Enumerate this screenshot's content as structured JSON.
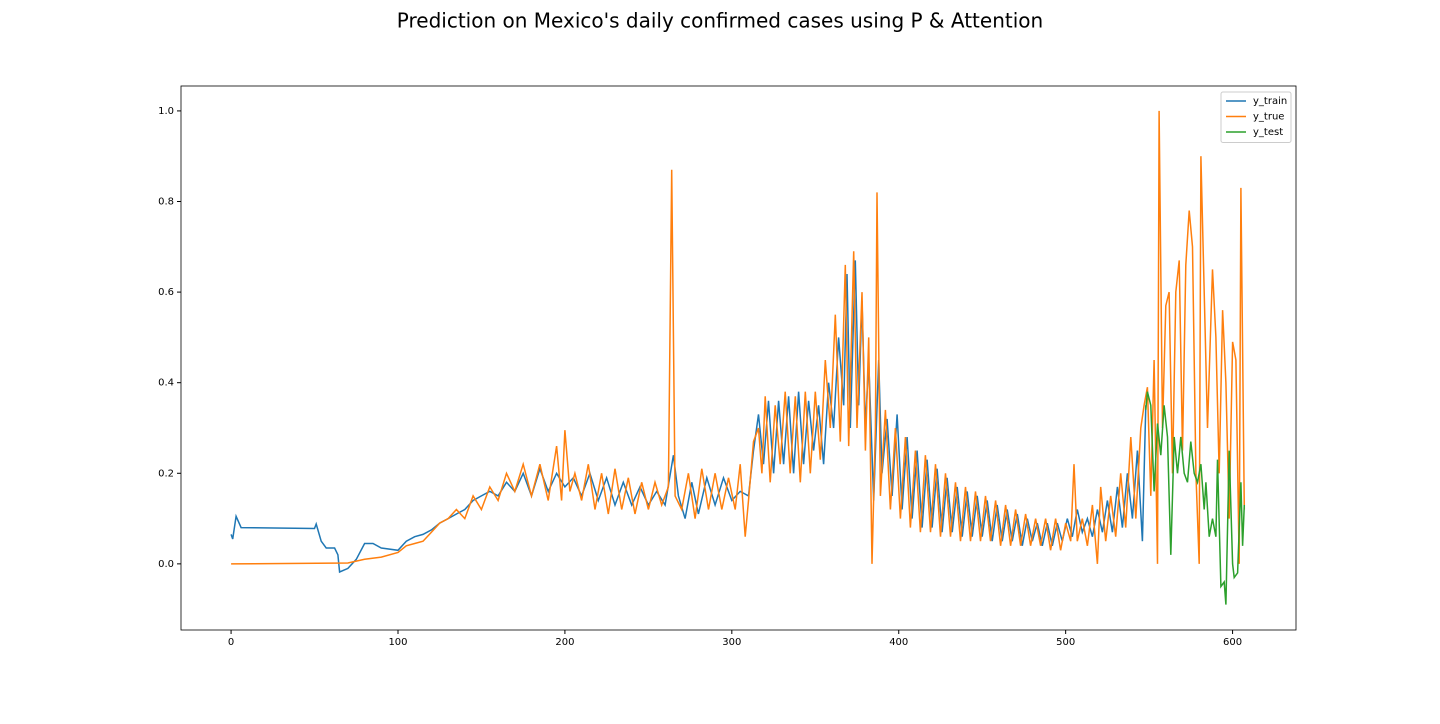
{
  "chart_data": {
    "type": "line",
    "title": "Prediction on Mexico's daily confirmed cases using P & Attention",
    "xlim": [
      -30,
      638
    ],
    "xticks": [
      0,
      100,
      200,
      300,
      400,
      500,
      600
    ],
    "ylim": [
      -0.146,
      1.055
    ],
    "yticks": [
      {
        "value": 0,
        "label": "0.0"
      },
      0.2,
      0.4,
      0.6,
      0.8,
      {
        "value": 1,
        "label": "1.0"
      }
    ],
    "legend": "upper right",
    "series": [
      {
        "name": "y_train",
        "color": "#1f77b4",
        "x": [
          0,
          1,
          3,
          6,
          50,
          51,
          54,
          57,
          62,
          64,
          65,
          70,
          75,
          80,
          85,
          90,
          100,
          105,
          110,
          115,
          120,
          125,
          130,
          135,
          140,
          145,
          150,
          155,
          160,
          165,
          170,
          175,
          180,
          185,
          190,
          195,
          200,
          205,
          210,
          215,
          220,
          225,
          230,
          235,
          240,
          245,
          250,
          255,
          260,
          265,
          268,
          272,
          276,
          280,
          285,
          290,
          295,
          300,
          305,
          310,
          313,
          316,
          319,
          322,
          325,
          328,
          331,
          334,
          337,
          340,
          343,
          346,
          349,
          352,
          355,
          358,
          361,
          364,
          367,
          369,
          371,
          374,
          376,
          378,
          380,
          382,
          385,
          388,
          390,
          393,
          396,
          399,
          402,
          405,
          408,
          411,
          414,
          417,
          420,
          423,
          426,
          429,
          432,
          435,
          438,
          441,
          444,
          447,
          450,
          453,
          456,
          459,
          462,
          465,
          468,
          471,
          474,
          477,
          480,
          483,
          486,
          489,
          492,
          495,
          498,
          501,
          504,
          507,
          510,
          513,
          516,
          519,
          522,
          525,
          528,
          531,
          534,
          537,
          540,
          543,
          546,
          548
        ],
        "values": [
          0.065,
          0.055,
          0.105,
          0.08,
          0.078,
          0.088,
          0.05,
          0.035,
          0.035,
          0.02,
          -0.018,
          -0.01,
          0.01,
          0.045,
          0.045,
          0.035,
          0.03,
          0.05,
          0.06,
          0.065,
          0.075,
          0.09,
          0.1,
          0.11,
          0.12,
          0.14,
          0.15,
          0.16,
          0.15,
          0.18,
          0.16,
          0.2,
          0.15,
          0.21,
          0.16,
          0.2,
          0.17,
          0.19,
          0.15,
          0.2,
          0.14,
          0.19,
          0.13,
          0.18,
          0.13,
          0.17,
          0.13,
          0.16,
          0.13,
          0.24,
          0.15,
          0.1,
          0.18,
          0.11,
          0.19,
          0.13,
          0.19,
          0.14,
          0.16,
          0.15,
          0.25,
          0.33,
          0.22,
          0.36,
          0.2,
          0.36,
          0.22,
          0.37,
          0.2,
          0.38,
          0.22,
          0.36,
          0.25,
          0.35,
          0.22,
          0.4,
          0.3,
          0.5,
          0.35,
          0.64,
          0.3,
          0.67,
          0.35,
          0.58,
          0.3,
          0.45,
          0.14,
          0.45,
          0.2,
          0.32,
          0.15,
          0.33,
          0.12,
          0.28,
          0.1,
          0.25,
          0.08,
          0.23,
          0.08,
          0.21,
          0.07,
          0.19,
          0.07,
          0.17,
          0.06,
          0.16,
          0.06,
          0.15,
          0.06,
          0.14,
          0.05,
          0.13,
          0.05,
          0.12,
          0.05,
          0.11,
          0.04,
          0.1,
          0.05,
          0.09,
          0.04,
          0.09,
          0.04,
          0.09,
          0.05,
          0.1,
          0.06,
          0.12,
          0.07,
          0.1,
          0.06,
          0.12,
          0.07,
          0.14,
          0.07,
          0.17,
          0.08,
          0.2,
          0.1,
          0.25,
          0.05,
          0.35
        ]
      },
      {
        "name": "y_true",
        "color": "#ff7f0e",
        "x": [
          0,
          70,
          80,
          90,
          100,
          105,
          110,
          115,
          120,
          125,
          130,
          135,
          140,
          145,
          150,
          155,
          160,
          165,
          170,
          175,
          180,
          185,
          190,
          195,
          198,
          200,
          203,
          206,
          210,
          214,
          218,
          222,
          226,
          230,
          234,
          238,
          242,
          246,
          250,
          254,
          258,
          262,
          264,
          266,
          270,
          274,
          278,
          282,
          286,
          290,
          294,
          298,
          302,
          305,
          308,
          310,
          313,
          316,
          318,
          320,
          323,
          326,
          329,
          332,
          335,
          338,
          341,
          344,
          347,
          350,
          353,
          356,
          359,
          362,
          365,
          368,
          370,
          373,
          375,
          378,
          380,
          382,
          384,
          386,
          387,
          389,
          392,
          395,
          398,
          401,
          404,
          407,
          410,
          413,
          416,
          419,
          422,
          425,
          428,
          431,
          434,
          437,
          440,
          443,
          446,
          449,
          452,
          455,
          458,
          461,
          464,
          467,
          470,
          473,
          476,
          479,
          482,
          485,
          488,
          491,
          494,
          497,
          500,
          503,
          505,
          507,
          510,
          513,
          516,
          519,
          521,
          524,
          527,
          530,
          533,
          536,
          539,
          542,
          545,
          547,
          549,
          551,
          553,
          555,
          556,
          558,
          560,
          562,
          564,
          566,
          568,
          570,
          572,
          574,
          576,
          578,
          580,
          581,
          583,
          585,
          588,
          590,
          592,
          594,
          596,
          598,
          600,
          602,
          604,
          605,
          607
        ],
        "values": [
          0,
          0.002,
          0.01,
          0.015,
          0.025,
          0.04,
          0.045,
          0.05,
          0.07,
          0.09,
          0.1,
          0.12,
          0.1,
          0.15,
          0.12,
          0.17,
          0.14,
          0.2,
          0.16,
          0.22,
          0.15,
          0.22,
          0.14,
          0.26,
          0.14,
          0.295,
          0.16,
          0.2,
          0.14,
          0.22,
          0.12,
          0.2,
          0.11,
          0.21,
          0.12,
          0.19,
          0.11,
          0.18,
          0.12,
          0.18,
          0.13,
          0.17,
          0.87,
          0.15,
          0.12,
          0.2,
          0.1,
          0.21,
          0.12,
          0.2,
          0.12,
          0.19,
          0.12,
          0.22,
          0.06,
          0.14,
          0.27,
          0.3,
          0.2,
          0.37,
          0.18,
          0.35,
          0.22,
          0.38,
          0.2,
          0.37,
          0.18,
          0.38,
          0.2,
          0.38,
          0.23,
          0.45,
          0.3,
          0.55,
          0.27,
          0.66,
          0.26,
          0.69,
          0.3,
          0.6,
          0.25,
          0.5,
          0,
          0.3,
          0.82,
          0.15,
          0.34,
          0.12,
          0.3,
          0.1,
          0.28,
          0.08,
          0.25,
          0.07,
          0.24,
          0.07,
          0.22,
          0.06,
          0.2,
          0.06,
          0.18,
          0.05,
          0.17,
          0.05,
          0.16,
          0.05,
          0.15,
          0.05,
          0.14,
          0.04,
          0.13,
          0.04,
          0.12,
          0.04,
          0.11,
          0.04,
          0.1,
          0.04,
          0.1,
          0.03,
          0.1,
          0.03,
          0.09,
          0.05,
          0.22,
          0.05,
          0.1,
          0.04,
          0.13,
          0,
          0.17,
          0.05,
          0.15,
          0.06,
          0.2,
          0.08,
          0.28,
          0.1,
          0.3,
          0.35,
          0.39,
          0.15,
          0.45,
          0,
          1,
          0.3,
          0.57,
          0.6,
          0.2,
          0.6,
          0.67,
          0.25,
          0.66,
          0.78,
          0.7,
          0.2,
          0,
          0.9,
          0.6,
          0.3,
          0.65,
          0.5,
          0.2,
          0.56,
          0.4,
          0.1,
          0.49,
          0.45,
          0,
          0.83,
          0.12
        ]
      },
      {
        "name": "y_test",
        "color": "#2ca02c",
        "x": [
          548,
          549,
          551,
          553,
          555,
          557,
          559,
          561,
          563,
          565,
          567,
          569,
          571,
          573,
          575,
          577,
          579,
          581,
          583,
          584,
          586,
          588,
          590,
          591,
          593,
          595,
          596,
          598,
          600,
          601,
          603,
          605,
          606,
          607
        ],
        "values": [
          0.34,
          0.38,
          0.35,
          0.16,
          0.31,
          0.24,
          0.35,
          0.28,
          0.02,
          0.28,
          0.2,
          0.28,
          0.2,
          0.18,
          0.27,
          0.2,
          0.18,
          0.22,
          0.12,
          0.18,
          0.06,
          0.1,
          0.06,
          0.23,
          -0.05,
          -0.04,
          -0.09,
          0.25,
          0,
          -0.03,
          -0.02,
          0.18,
          0.04,
          0.13
        ]
      }
    ]
  }
}
